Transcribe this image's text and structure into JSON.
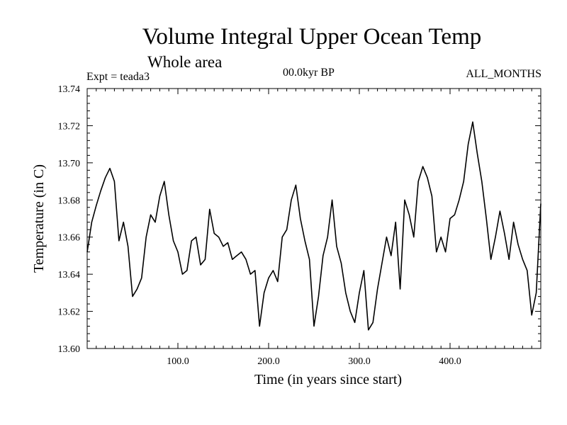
{
  "header": {
    "title": "Volume Integral Upper Ocean Temp",
    "subtitle": "Whole area",
    "experiment": "Expt = teada3",
    "era": "00.0kyr BP",
    "months": "ALL_MONTHS"
  },
  "chart_data": {
    "type": "line",
    "title": "Volume Integral Upper Ocean Temp",
    "subtitle": "Whole area",
    "xlabel": "Time (in years since start)",
    "ylabel": "Temperature (in C)",
    "xlim": [
      0,
      500
    ],
    "ylim": [
      13.6,
      13.74
    ],
    "xticks": [
      100,
      200,
      300,
      400
    ],
    "xtick_labels": [
      "100.0",
      "200.0",
      "300.0",
      "400.0"
    ],
    "yticks": [
      13.6,
      13.62,
      13.64,
      13.66,
      13.68,
      13.7,
      13.72,
      13.74
    ],
    "ytick_labels": [
      "13.60",
      "13.62",
      "13.64",
      "13.66",
      "13.68",
      "13.70",
      "13.72",
      "13.74"
    ],
    "grid": false,
    "series": [
      {
        "name": "Temperature",
        "x": [
          0,
          5,
          10,
          15,
          20,
          25,
          30,
          35,
          40,
          45,
          50,
          55,
          60,
          65,
          70,
          75,
          80,
          85,
          90,
          95,
          100,
          105,
          110,
          115,
          120,
          125,
          130,
          135,
          140,
          145,
          150,
          155,
          160,
          165,
          170,
          175,
          180,
          185,
          190,
          195,
          200,
          205,
          210,
          215,
          220,
          225,
          230,
          235,
          240,
          245,
          250,
          255,
          260,
          265,
          270,
          275,
          280,
          285,
          290,
          295,
          300,
          305,
          310,
          315,
          320,
          325,
          330,
          335,
          340,
          345,
          350,
          355,
          360,
          365,
          370,
          375,
          380,
          385,
          390,
          395,
          400,
          405,
          410,
          415,
          420,
          425,
          430,
          435,
          440,
          445,
          450,
          455,
          460,
          465,
          470,
          475,
          480,
          485,
          490,
          495,
          500
        ],
        "values": [
          13.652,
          13.668,
          13.677,
          13.685,
          13.692,
          13.697,
          13.69,
          13.658,
          13.668,
          13.655,
          13.628,
          13.632,
          13.638,
          13.66,
          13.672,
          13.668,
          13.682,
          13.69,
          13.672,
          13.658,
          13.652,
          13.64,
          13.642,
          13.658,
          13.66,
          13.645,
          13.648,
          13.675,
          13.662,
          13.66,
          13.655,
          13.657,
          13.648,
          13.65,
          13.652,
          13.648,
          13.64,
          13.642,
          13.612,
          13.63,
          13.638,
          13.642,
          13.636,
          13.66,
          13.664,
          13.68,
          13.688,
          13.67,
          13.658,
          13.648,
          13.612,
          13.628,
          13.65,
          13.66,
          13.68,
          13.655,
          13.646,
          13.63,
          13.62,
          13.614,
          13.63,
          13.642,
          13.61,
          13.614,
          13.632,
          13.646,
          13.66,
          13.65,
          13.668,
          13.632,
          13.68,
          13.672,
          13.66,
          13.69,
          13.698,
          13.692,
          13.682,
          13.652,
          13.66,
          13.652,
          13.67,
          13.672,
          13.68,
          13.69,
          13.71,
          13.722,
          13.705,
          13.69,
          13.67,
          13.648,
          13.66,
          13.674,
          13.662,
          13.648,
          13.668,
          13.656,
          13.648,
          13.642,
          13.618,
          13.63,
          13.678
        ]
      }
    ]
  }
}
